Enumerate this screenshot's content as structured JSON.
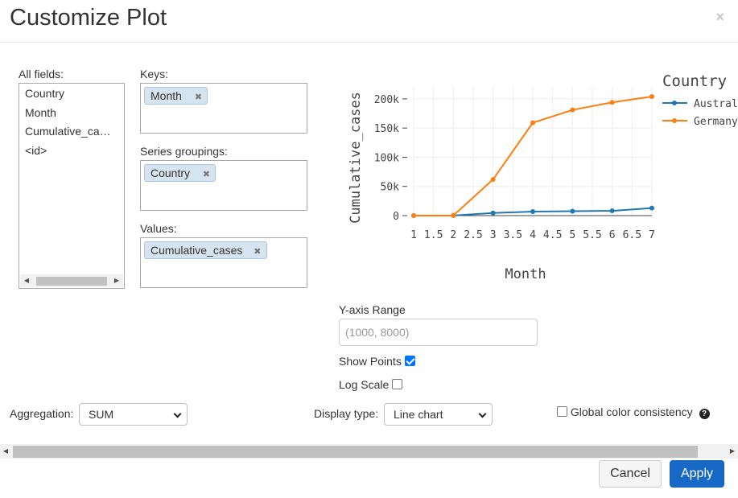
{
  "dialog": {
    "title": "Customize Plot",
    "close_glyph": "×"
  },
  "fields": {
    "label": "All fields:",
    "items": [
      "Country",
      "Month",
      "Cumulative_ca…",
      "<id>"
    ],
    "scroll_left": "◀",
    "scroll_right": "▶"
  },
  "keys": {
    "label": "Keys:",
    "chip": "Month",
    "remove_glyph": "✖"
  },
  "series": {
    "label": "Series groupings:",
    "chip": "Country",
    "remove_glyph": "✖"
  },
  "values": {
    "label": "Values:",
    "chip": "Cumulative_cases",
    "remove_glyph": "✖"
  },
  "chart_data": {
    "type": "line",
    "xlabel": "Month",
    "ylabel": "Cumulative_cases",
    "x_ticks": [
      "1",
      "1.5",
      "2",
      "2.5",
      "3",
      "3.5",
      "4",
      "4.5",
      "5",
      "5.5",
      "6",
      "6.5",
      "7"
    ],
    "y_ticks": [
      "0",
      "50k",
      "100k",
      "150k",
      "200k"
    ],
    "xlim": [
      1,
      7
    ],
    "ylim": [
      0,
      215000
    ],
    "grid": true,
    "legend_title": "Country",
    "legend_position": "right",
    "series": [
      {
        "name": "Australia",
        "color": "#1f77b4",
        "x": [
          1,
          2,
          3,
          4,
          5,
          6,
          7
        ],
        "y": [
          0,
          200,
          4500,
          6900,
          7600,
          8200,
          13000
        ]
      },
      {
        "name": "Germany",
        "color": "#ff7f0e",
        "x": [
          1,
          2,
          3,
          4,
          5,
          6,
          7
        ],
        "y": [
          0,
          300,
          62000,
          159000,
          181000,
          194000,
          204000
        ]
      }
    ]
  },
  "y_range": {
    "label": "Y-axis Range",
    "placeholder": "(1000, 8000)"
  },
  "show_points": {
    "label": "Show Points",
    "checked": true
  },
  "log_scale": {
    "label": "Log Scale",
    "checked": false
  },
  "aggregation": {
    "label": "Aggregation:",
    "value": "SUM"
  },
  "display_type": {
    "label": "Display type:",
    "value": "Line chart"
  },
  "global_color": {
    "label": "Global color consistency",
    "checked": false,
    "help_glyph": "?"
  },
  "main_scroll": {
    "left": "◀",
    "right": "▶"
  },
  "buttons": {
    "cancel": "Cancel",
    "apply": "Apply"
  }
}
